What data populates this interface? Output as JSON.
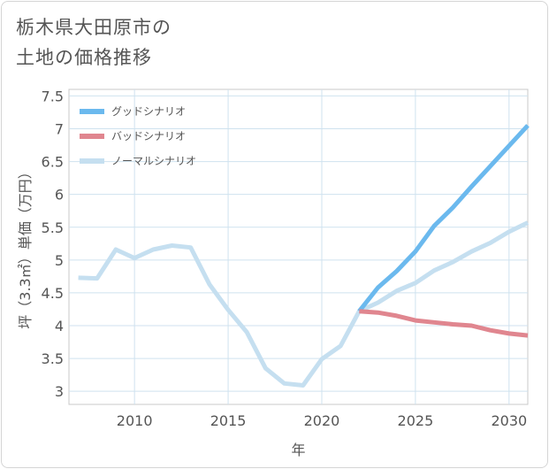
{
  "title": {
    "line1": "栃木県大田原市の",
    "line2": "土地の価格推移"
  },
  "chart_data": {
    "type": "line",
    "xlabel": "年",
    "ylabel": "坪（3.3㎡）単価（万円）",
    "xlim": [
      2006.5,
      2031
    ],
    "ylim": [
      2.8,
      7.6
    ],
    "xticks": [
      2010,
      2015,
      2020,
      2025,
      2030
    ],
    "yticks": [
      3,
      3.5,
      4,
      4.5,
      5,
      5.5,
      6,
      6.5,
      7,
      7.5
    ],
    "ytick_labels": [
      "3",
      "3.5",
      "4",
      "4.5",
      "5",
      "5.5",
      "6",
      "6.5",
      "7",
      "7.5"
    ],
    "grid": true,
    "legend_position": "top-left",
    "series": [
      {
        "name": "ノーマルシナリオ",
        "color": "#c5dff0",
        "x": [
          2007,
          2008,
          2009,
          2010,
          2011,
          2012,
          2013,
          2014,
          2015,
          2016,
          2017,
          2018,
          2019,
          2020,
          2021,
          2022,
          2023,
          2024,
          2025,
          2026,
          2027,
          2028,
          2029,
          2030,
          2031
        ],
        "values": [
          4.73,
          4.72,
          5.16,
          5.03,
          5.16,
          5.22,
          5.19,
          4.63,
          4.24,
          3.9,
          3.35,
          3.12,
          3.09,
          3.49,
          3.69,
          4.22,
          4.35,
          4.53,
          4.65,
          4.84,
          4.97,
          5.13,
          5.26,
          5.43,
          5.57
        ]
      },
      {
        "name": "グッドシナリオ",
        "color": "#6bb9ee",
        "x": [
          2022,
          2023,
          2024,
          2025,
          2026,
          2027,
          2028,
          2029,
          2030,
          2031
        ],
        "values": [
          4.22,
          4.58,
          4.83,
          5.13,
          5.52,
          5.8,
          6.12,
          6.43,
          6.74,
          7.05
        ]
      },
      {
        "name": "バッドシナリオ",
        "color": "#e0868f",
        "x": [
          2022,
          2023,
          2024,
          2025,
          2026,
          2027,
          2028,
          2029,
          2030,
          2031
        ],
        "values": [
          4.22,
          4.2,
          4.15,
          4.08,
          4.05,
          4.02,
          4.0,
          3.93,
          3.88,
          3.85
        ]
      }
    ],
    "legend": [
      {
        "label": "グッドシナリオ",
        "color": "#6bb9ee"
      },
      {
        "label": "バッドシナリオ",
        "color": "#e0868f"
      },
      {
        "label": "ノーマルシナリオ",
        "color": "#c5dff0"
      }
    ]
  }
}
